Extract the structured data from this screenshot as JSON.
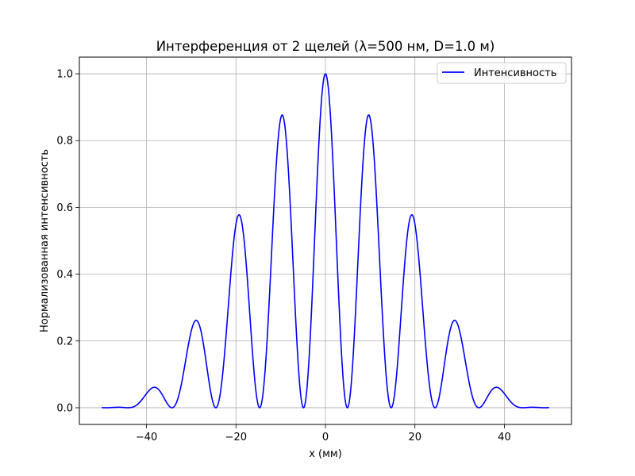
{
  "chart_data": {
    "type": "line",
    "title": "Интерференция от 2 щелей (λ=500 нм, D=1.0 м)",
    "xlabel": "x (мм)",
    "ylabel": "Нормализованная интенсивность",
    "xlim": [
      -55,
      55
    ],
    "ylim": [
      -0.05,
      1.05
    ],
    "xticks": [
      -40,
      -20,
      0,
      20,
      40
    ],
    "xtick_labels": [
      "−40",
      "−20",
      "0",
      "20",
      "40"
    ],
    "yticks": [
      0.0,
      0.2,
      0.4,
      0.6,
      0.8,
      1.0
    ],
    "ytick_labels": [
      "0.0",
      "0.2",
      "0.4",
      "0.6",
      "0.8",
      "1.0"
    ],
    "grid": true,
    "legend": "top-right",
    "series": [
      {
        "name": "Интенсивность",
        "color": "#0000ff",
        "x_range": [
          -50,
          50
        ],
        "fringe_spacing_mm": 9.8,
        "envelope_first_zero_mm": 49,
        "peaks": [
          {
            "x": -39,
            "y": 0.06
          },
          {
            "x": -29.5,
            "y": 0.26
          },
          {
            "x": -19.7,
            "y": 0.58
          },
          {
            "x": -9.9,
            "y": 0.875
          },
          {
            "x": 0,
            "y": 1.0
          },
          {
            "x": 9.9,
            "y": 0.875
          },
          {
            "x": 19.7,
            "y": 0.58
          },
          {
            "x": 29.5,
            "y": 0.26
          },
          {
            "x": 39,
            "y": 0.06
          }
        ]
      }
    ]
  }
}
